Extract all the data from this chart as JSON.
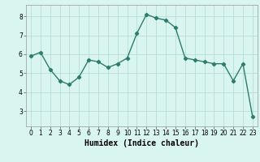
{
  "x": [
    0,
    1,
    2,
    3,
    4,
    5,
    6,
    7,
    8,
    9,
    10,
    11,
    12,
    13,
    14,
    15,
    16,
    17,
    18,
    19,
    20,
    21,
    22,
    23
  ],
  "y": [
    5.9,
    6.1,
    5.2,
    4.6,
    4.4,
    4.8,
    5.7,
    5.6,
    5.3,
    5.5,
    5.8,
    7.1,
    8.1,
    7.9,
    7.8,
    7.4,
    5.8,
    5.7,
    5.6,
    5.5,
    5.5,
    4.6,
    5.5,
    2.7
  ],
  "line_color": "#2d7d6e",
  "marker": "D",
  "marker_size": 2.2,
  "xlabel": "Humidex (Indice chaleur)",
  "xlim": [
    -0.5,
    23.5
  ],
  "ylim": [
    2.2,
    8.6
  ],
  "yticks": [
    3,
    4,
    5,
    6,
    7,
    8
  ],
  "xticks": [
    0,
    1,
    2,
    3,
    4,
    5,
    6,
    7,
    8,
    9,
    10,
    11,
    12,
    13,
    14,
    15,
    16,
    17,
    18,
    19,
    20,
    21,
    22,
    23
  ],
  "bg_color": "#d9f5ef",
  "grid_color": "#b8ddd7",
  "tick_label_size": 5.5,
  "xlabel_size": 7.0,
  "linewidth": 1.0
}
